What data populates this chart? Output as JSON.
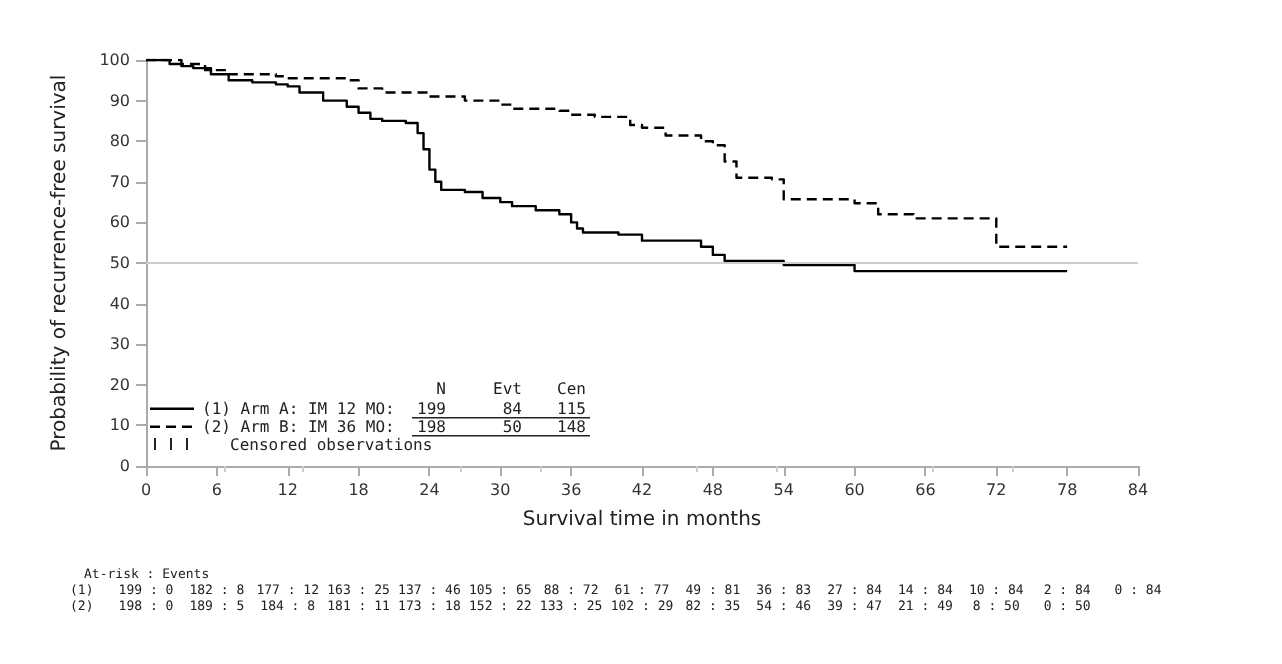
{
  "chart_data": {
    "type": "step",
    "xlabel": "Survival time in months",
    "ylabel": "Probability of recurrence-free survival",
    "xlim": [
      0,
      84
    ],
    "xticks": [
      0,
      6,
      12,
      18,
      24,
      30,
      36,
      42,
      48,
      54,
      60,
      66,
      72,
      78,
      84
    ],
    "ylim": [
      0,
      100
    ],
    "yticks": [
      0,
      10,
      20,
      30,
      40,
      50,
      60,
      70,
      80,
      90,
      100
    ],
    "grid": false,
    "legend": "bottom left",
    "marker": "none",
    "ref_lines": [
      {
        "axis": "y",
        "value": 50,
        "color": "#cccccc"
      }
    ],
    "series": [
      {
        "name": "(1) Arm A: IM 12 MO:",
        "color": "#000000",
        "line_style": "solid",
        "x": [
          0,
          2,
          3,
          4,
          5.5,
          7,
          9,
          11,
          12,
          13,
          15,
          17,
          18,
          19,
          20,
          22,
          23,
          23.5,
          24,
          24.5,
          25,
          27,
          28.5,
          30,
          31,
          33,
          35,
          36,
          36.5,
          37,
          40,
          42,
          47,
          48,
          49,
          54,
          60,
          78
        ],
        "values": [
          100,
          99,
          98.5,
          98,
          96.5,
          95,
          94.5,
          94,
          93.5,
          92,
          90,
          88.5,
          87,
          85.5,
          85,
          84.5,
          82,
          78,
          73,
          70,
          68,
          67.5,
          66,
          65,
          64,
          63,
          62,
          60,
          58.5,
          57.5,
          57,
          55.5,
          54,
          52,
          50.5,
          49.5,
          48,
          48
        ]
      },
      {
        "name": "(2) Arm B: IM 36 MO:",
        "color": "#000000",
        "line_style": "dashed",
        "x": [
          0,
          3,
          5,
          7,
          11,
          12,
          17,
          18,
          20,
          24,
          27,
          30,
          31,
          35,
          36,
          38,
          41,
          42,
          44,
          47,
          48,
          49,
          50,
          53,
          54,
          60,
          62,
          65,
          72,
          78
        ],
        "values": [
          100,
          99,
          97.5,
          96.5,
          96,
          95.5,
          95,
          93,
          92,
          91,
          90,
          89,
          88,
          87.5,
          86.5,
          86,
          84,
          83.3,
          81.4,
          80,
          79,
          75,
          71,
          70.6,
          65.7,
          64.7,
          62,
          61,
          54,
          54
        ]
      }
    ],
    "annotations": [
      "N",
      "Evt",
      "Cen",
      "199",
      "84",
      "115",
      "198",
      "50",
      "148",
      "Censored observations",
      "At-risk : Events",
      "(1)",
      "199 : 0",
      "182 : 8",
      "177 : 12",
      "163 : 25",
      "137 : 46",
      "105 : 65",
      "88 : 72",
      "61 : 77",
      "49 : 81",
      "36 : 83",
      "27 : 84",
      "14 : 84",
      "10 : 84",
      "2 : 84",
      "0 : 84",
      "(2)",
      "198 : 0",
      "189 : 5",
      "184 : 8",
      "181 : 11",
      "173 : 18",
      "152 : 22",
      "133 : 25",
      "102 : 29",
      "82 : 35",
      "54 : 46",
      "39 : 47",
      "21 : 49",
      "8 : 50",
      "0 : 50"
    ]
  }
}
